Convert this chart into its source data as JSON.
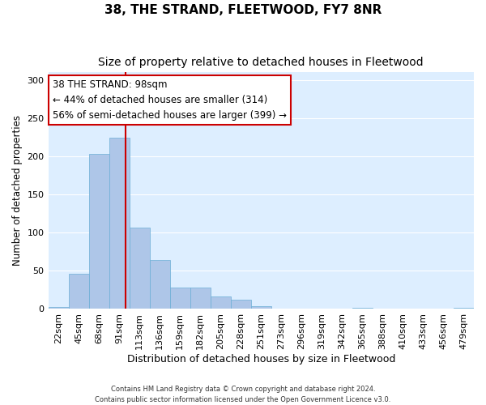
{
  "title": "38, THE STRAND, FLEETWOOD, FY7 8NR",
  "subtitle": "Size of property relative to detached houses in Fleetwood",
  "xlabel": "Distribution of detached houses by size in Fleetwood",
  "ylabel": "Number of detached properties",
  "bar_labels": [
    "22sqm",
    "45sqm",
    "68sqm",
    "91sqm",
    "113sqm",
    "136sqm",
    "159sqm",
    "182sqm",
    "205sqm",
    "228sqm",
    "251sqm",
    "273sqm",
    "296sqm",
    "319sqm",
    "342sqm",
    "365sqm",
    "388sqm",
    "410sqm",
    "433sqm",
    "456sqm",
    "479sqm"
  ],
  "bar_values": [
    3,
    46,
    203,
    224,
    107,
    64,
    28,
    28,
    16,
    12,
    4,
    1,
    1,
    0,
    0,
    2,
    0,
    0,
    0,
    0,
    2
  ],
  "bar_color": "#aec6e8",
  "bar_edge_color": "#6baed6",
  "annotation_text": "38 THE STRAND: 98sqm\n← 44% of detached houses are smaller (314)\n56% of semi-detached houses are larger (399) →",
  "annotation_box_facecolor": "#ffffff",
  "annotation_box_edgecolor": "#cc0000",
  "vline_color": "#cc0000",
  "footer_text": "Contains HM Land Registry data © Crown copyright and database right 2024.\nContains public sector information licensed under the Open Government Licence v3.0.",
  "fig_facecolor": "#ffffff",
  "ax_facecolor": "#ddeeff",
  "grid_color": "#ffffff",
  "ylim": [
    0,
    310
  ],
  "yticks": [
    0,
    50,
    100,
    150,
    200,
    250,
    300
  ],
  "vline_x_index": 3.3
}
